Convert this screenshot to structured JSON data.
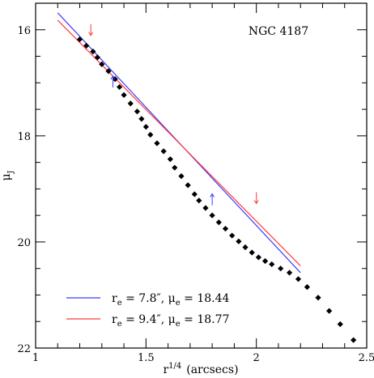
{
  "chart_data": {
    "type": "scatter",
    "title": "NGC 4187",
    "xlabel_base": "r",
    "xlabel_exponent": "1/4",
    "xlabel_unit": "(arcsecs)",
    "ylabel_symbol": "μ",
    "ylabel_subscript": "J",
    "xlim": [
      1.0,
      2.5
    ],
    "ylim": [
      22.0,
      15.5
    ],
    "y_inverted": true,
    "x_ticks": [
      "1",
      "1.5",
      "2",
      "2.5"
    ],
    "x_tick_values": [
      1.0,
      1.5,
      2.0,
      2.5
    ],
    "y_ticks": [
      "16",
      "18",
      "20",
      "22"
    ],
    "y_tick_values": [
      16,
      18,
      20,
      22
    ],
    "x_minor_step": 0.1,
    "y_minor_step": 0.5,
    "grid": false,
    "series": [
      {
        "kind": "points",
        "color": "#000000",
        "x": [
          1.2,
          1.23,
          1.26,
          1.28,
          1.3,
          1.33,
          1.36,
          1.38,
          1.4,
          1.43,
          1.46,
          1.48,
          1.5,
          1.52,
          1.55,
          1.58,
          1.61,
          1.63,
          1.66,
          1.69,
          1.72,
          1.74,
          1.77,
          1.8,
          1.83,
          1.86,
          1.89,
          1.92,
          1.95,
          1.98,
          2.01,
          2.04,
          2.07,
          2.11,
          2.15,
          2.19,
          2.23,
          2.28,
          2.33,
          2.38,
          2.44
        ],
        "y": [
          16.18,
          16.3,
          16.41,
          16.52,
          16.65,
          16.78,
          16.93,
          17.08,
          17.23,
          17.39,
          17.54,
          17.68,
          17.83,
          17.98,
          18.14,
          18.29,
          18.44,
          18.6,
          18.76,
          18.93,
          19.1,
          19.22,
          19.36,
          19.5,
          19.63,
          19.75,
          19.88,
          19.99,
          20.1,
          20.2,
          20.29,
          20.36,
          20.42,
          20.5,
          20.58,
          20.7,
          20.85,
          21.05,
          21.3,
          21.55,
          21.85
        ]
      },
      {
        "kind": "line",
        "name": "r_e = 7.8″, μ_e = 18.44",
        "color": "#3b3bff",
        "x": [
          1.1,
          2.2
        ],
        "y": [
          15.68,
          20.58
        ]
      },
      {
        "kind": "line",
        "name": "r_e = 9.4″, μ_e = 18.77",
        "color": "#ff3b3b",
        "x": [
          1.1,
          2.2
        ],
        "y": [
          15.82,
          20.45
        ]
      }
    ],
    "markers": [
      {
        "x": 1.25,
        "y": 16.0,
        "direction": "down",
        "color": "#ff3b3b"
      },
      {
        "x": 1.35,
        "y": 16.98,
        "direction": "up",
        "color": "#3b3bff"
      },
      {
        "x": 1.8,
        "y": 19.2,
        "direction": "up",
        "color": "#3b3bff"
      },
      {
        "x": 2.0,
        "y": 19.17,
        "direction": "down",
        "color": "#ff3b3b"
      }
    ],
    "legend": {
      "placement": "bottom-left",
      "entries": [
        {
          "color": "#3b3bff",
          "re_value": "7.8",
          "mue_value": "18.44"
        },
        {
          "color": "#ff3b3b",
          "re_value": "9.4",
          "mue_value": "18.77"
        }
      ]
    }
  }
}
